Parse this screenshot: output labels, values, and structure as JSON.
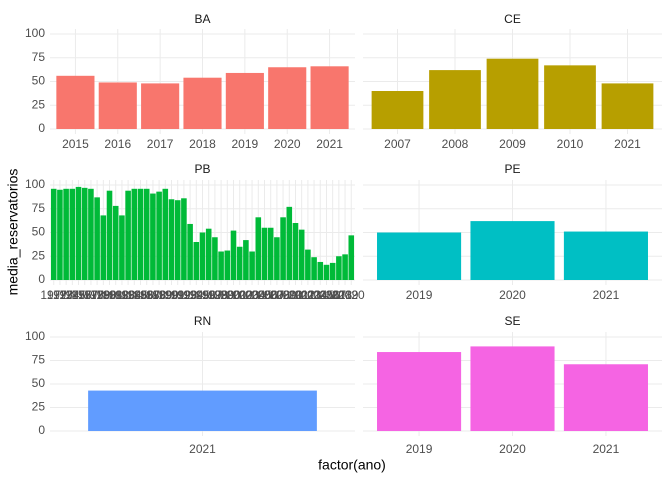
{
  "xlabel": "factor(ano)",
  "ylabel": "media_reservatorios",
  "chart_data": [
    {
      "type": "bar",
      "title": "BA",
      "color": "#F8766D",
      "categories": [
        "2015",
        "2016",
        "2017",
        "2018",
        "2019",
        "2020",
        "2021"
      ],
      "values": [
        56,
        49,
        48,
        54,
        59,
        65,
        66
      ],
      "ylim": [
        0,
        100
      ],
      "yticks": [
        0,
        25,
        50,
        75,
        100
      ]
    },
    {
      "type": "bar",
      "title": "CE",
      "color": "#B79F00",
      "categories": [
        "2007",
        "2008",
        "2009",
        "2010",
        "2021"
      ],
      "values": [
        40,
        62,
        74,
        67,
        48
      ],
      "ylim": [
        0,
        100
      ],
      "yticks": [
        0,
        25,
        50,
        75,
        100
      ]
    },
    {
      "type": "bar",
      "title": "PB",
      "color": "#00BA38",
      "categories": [
        "1972",
        "1973",
        "1974",
        "1975",
        "1976",
        "1977",
        "1978",
        "1979",
        "1980",
        "1981",
        "1982",
        "1983",
        "1984",
        "1985",
        "1986",
        "1987",
        "1988",
        "1989",
        "1990",
        "1991",
        "1992",
        "1993",
        "1994",
        "1995",
        "1996",
        "1997",
        "1998",
        "1999",
        "2000",
        "2001",
        "2002",
        "2003",
        "2004",
        "2005",
        "2006",
        "2007",
        "2008",
        "2009",
        "2010",
        "2011",
        "2012",
        "2013",
        "2014",
        "2015",
        "2016",
        "2017",
        "2018",
        "2019",
        "2020"
      ],
      "values": [
        96,
        95,
        96,
        96,
        98,
        97,
        96,
        87,
        68,
        94,
        78,
        68,
        94,
        96,
        96,
        96,
        91,
        93,
        96,
        85,
        84,
        86,
        59,
        40,
        50,
        54,
        45,
        30,
        31,
        52,
        35,
        42,
        30,
        66,
        55,
        55,
        45,
        66,
        77,
        60,
        53,
        32,
        24,
        19,
        16,
        18,
        25,
        27,
        47
      ],
      "ylim": [
        0,
        100
      ],
      "yticks": [
        0,
        25,
        50,
        75,
        100
      ]
    },
    {
      "type": "bar",
      "title": "PE",
      "color": "#00BFC4",
      "categories": [
        "2019",
        "2020",
        "2021"
      ],
      "values": [
        50,
        62,
        51
      ],
      "ylim": [
        0,
        100
      ],
      "yticks": [
        0,
        25,
        50,
        75,
        100
      ]
    },
    {
      "type": "bar",
      "title": "RN",
      "color": "#619CFF",
      "categories": [
        "2021"
      ],
      "values": [
        43
      ],
      "ylim": [
        0,
        100
      ],
      "yticks": [
        0,
        25,
        50,
        75,
        100
      ]
    },
    {
      "type": "bar",
      "title": "SE",
      "color": "#F564E3",
      "categories": [
        "2019",
        "2020",
        "2021"
      ],
      "values": [
        84,
        90,
        71
      ],
      "ylim": [
        0,
        100
      ],
      "yticks": [
        0,
        25,
        50,
        75,
        100
      ]
    }
  ]
}
